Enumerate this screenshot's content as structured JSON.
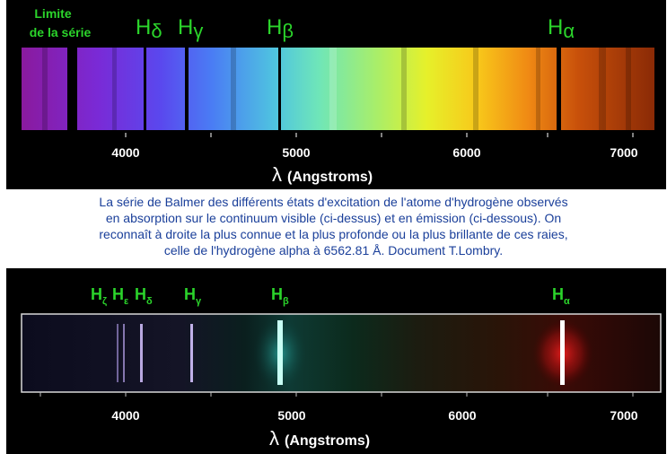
{
  "top": {
    "series_limit_label": [
      "Limite",
      "de la série"
    ],
    "lines": [
      {
        "symbol": "H",
        "sub": "δ"
      },
      {
        "symbol": "H",
        "sub": "γ"
      },
      {
        "symbol": "H",
        "sub": "β"
      },
      {
        "symbol": "H",
        "sub": "α"
      }
    ],
    "ticks": [
      "4000",
      "5000",
      "6000",
      "7000"
    ],
    "axis_label_symbol": "λ",
    "axis_label_text": "(Angstroms)"
  },
  "caption": {
    "lines": [
      "La série de Balmer des différents états d'excitation de l'atome d'hydrogène observés",
      "en absorption sur le continuum visible (ci-dessus) et en émission (ci-dessous). On",
      "reconnaît à droite la plus connue et la plus profonde ou la plus brillante de ces raies,",
      "celle de l'hydrogène alpha à 6562.81 Å. Document T.Lombry."
    ],
    "color": "#1a3f9a"
  },
  "bottom": {
    "lines": [
      {
        "symbol": "H",
        "sub": "ζ"
      },
      {
        "symbol": "H",
        "sub": "ε"
      },
      {
        "symbol": "H",
        "sub": "δ"
      },
      {
        "symbol": "H",
        "sub": "γ"
      },
      {
        "symbol": "H",
        "sub": "β"
      },
      {
        "symbol": "H",
        "sub": "α"
      }
    ],
    "ticks": [
      "4000",
      "5000",
      "6000",
      "7000"
    ],
    "axis_label_symbol": "λ",
    "axis_label_text": "(Angstroms)"
  },
  "colors": {
    "label_green": "#2bd42b",
    "background": "#000000"
  }
}
